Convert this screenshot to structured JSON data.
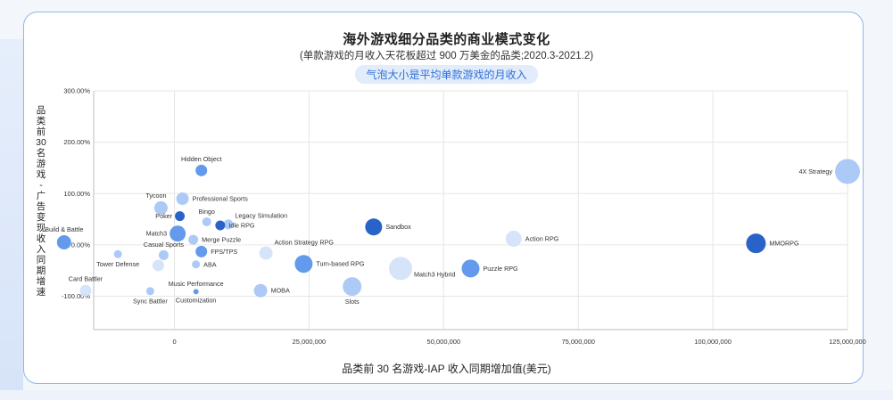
{
  "chart_data": {
    "type": "scatter",
    "title": "海外游戏细分品类的商业模式变化",
    "subtitle": "(单款游戏的月收入天花板超过 900 万美金的品类;2020.3-2021.2)",
    "note": "气泡大小是平均单款游戏的月收入",
    "xlabel": "品类前 30 名游戏-IAP 收入同期增加值(美元)",
    "ylabel": "品类前 30 名游戏 - 广告变现收入同期增速",
    "xlim": [
      -15000000,
      125000000
    ],
    "ylim": [
      -165,
      300
    ],
    "grid": true,
    "x_ticks": [
      {
        "value": 0,
        "label": "0"
      },
      {
        "value": 25000000,
        "label": "25,000,000"
      },
      {
        "value": 50000000,
        "label": "50,000,000"
      },
      {
        "value": 75000000,
        "label": "75,000,000"
      },
      {
        "value": 100000000,
        "label": "100,000,000"
      },
      {
        "value": 125000000,
        "label": "125,000,000"
      }
    ],
    "y_ticks": [
      {
        "value": 300,
        "label": "300.00%"
      },
      {
        "value": 200,
        "label": "200.00%"
      },
      {
        "value": 100,
        "label": "100.00%"
      },
      {
        "value": 0,
        "label": "0.00%"
      },
      {
        "value": -100,
        "label": "-100.00%"
      }
    ],
    "colors": {
      "dark": "#1f5bc4",
      "mid": "#5b95ea",
      "light": "#a9c6f5",
      "pale": "#d4e3fa"
    },
    "points": [
      {
        "name": "4X Strategy",
        "x": 125000000,
        "y": 143,
        "size": 14,
        "color": "light",
        "label_pos": "left"
      },
      {
        "name": "MMORPG",
        "x": 108000000,
        "y": 3,
        "size": 11,
        "color": "dark",
        "label_pos": "right"
      },
      {
        "name": "Action RPG",
        "x": 63000000,
        "y": 12,
        "size": 9,
        "color": "pale",
        "label_pos": "right"
      },
      {
        "name": "Puzzle RPG",
        "x": 55000000,
        "y": -46,
        "size": 10,
        "color": "mid",
        "label_pos": "right"
      },
      {
        "name": "Sandbox",
        "x": 37000000,
        "y": 35,
        "size": 9.5,
        "color": "dark",
        "label_pos": "right"
      },
      {
        "name": "Match3 Hybrid",
        "x": 42000000,
        "y": -46,
        "size": 13,
        "color": "pale",
        "label_pos": "right-below"
      },
      {
        "name": "Slots",
        "x": 33000000,
        "y": -81,
        "size": 10.5,
        "color": "light",
        "label_pos": "below"
      },
      {
        "name": "Turn-based RPG",
        "x": 24000000,
        "y": -37,
        "size": 10,
        "color": "mid",
        "label_pos": "right"
      },
      {
        "name": "Action Strategy RPG",
        "x": 17000000,
        "y": -16,
        "size": 7.5,
        "color": "pale",
        "label_pos": "above-right"
      },
      {
        "name": "MOBA",
        "x": 16000000,
        "y": -89,
        "size": 7.5,
        "color": "light",
        "label_pos": "right"
      },
      {
        "name": "Hidden Object",
        "x": 5000000,
        "y": 145,
        "size": 6.5,
        "color": "mid",
        "label_pos": "above"
      },
      {
        "name": "Professional Sports",
        "x": 1500000,
        "y": 90,
        "size": 7,
        "color": "light",
        "label_pos": "right"
      },
      {
        "name": "Tycoon",
        "x": -2500000,
        "y": 72,
        "size": 7.5,
        "color": "light",
        "label_pos": "above-left"
      },
      {
        "name": "Poker",
        "x": 1000000,
        "y": 56,
        "size": 5.5,
        "color": "dark",
        "label_pos": "left"
      },
      {
        "name": "Bingo",
        "x": 6000000,
        "y": 45,
        "size": 5,
        "color": "light",
        "label_pos": "above"
      },
      {
        "name": "Legacy Simulation",
        "x": 10000000,
        "y": 40,
        "size": 5.5,
        "color": "light",
        "label_pos": "above-right"
      },
      {
        "name": "Idle RPG",
        "x": 8500000,
        "y": 38,
        "size": 5.5,
        "color": "dark",
        "label_pos": "right"
      },
      {
        "name": "Match3",
        "x": 600000,
        "y": 22,
        "size": 9,
        "color": "mid",
        "label_pos": "left"
      },
      {
        "name": "Merge Puzzle",
        "x": 3500000,
        "y": 10,
        "size": 5.5,
        "color": "light",
        "label_pos": "right"
      },
      {
        "name": "Build & Battle",
        "x": -20500000,
        "y": 5,
        "size": 8,
        "color": "mid",
        "label_pos": "above"
      },
      {
        "name": "Tower Defense",
        "x": -10500000,
        "y": -18,
        "size": 4.5,
        "color": "light",
        "label_pos": "below"
      },
      {
        "name": "Casual Sports",
        "x": -2000000,
        "y": -20,
        "size": 5.5,
        "color": "light",
        "label_pos": "above"
      },
      {
        "name": "FPS/TPS",
        "x": 5000000,
        "y": -13,
        "size": 6.5,
        "color": "mid",
        "label_pos": "right"
      },
      {
        "name": "ABA",
        "x": 4000000,
        "y": -38,
        "size": 4.5,
        "color": "light",
        "label_pos": "right"
      },
      {
        "name": "Card Battler",
        "x": -16500000,
        "y": -89,
        "size": 6.5,
        "color": "pale",
        "label_pos": "above"
      },
      {
        "name": "Sync Battler",
        "x": -4500000,
        "y": -90,
        "size": 4.5,
        "color": "light",
        "label_pos": "below"
      },
      {
        "name": "Music Performance",
        "x": 4000000,
        "y": -76,
        "size": 0,
        "color": "light",
        "label_pos": "center"
      },
      {
        "name": "Customization",
        "x": 4000000,
        "y": -91,
        "size": 3,
        "color": "mid",
        "label_pos": "below"
      },
      {
        "name": "",
        "x": -3000000,
        "y": -40,
        "size": 6.5,
        "color": "pale",
        "label_pos": "none"
      }
    ]
  }
}
